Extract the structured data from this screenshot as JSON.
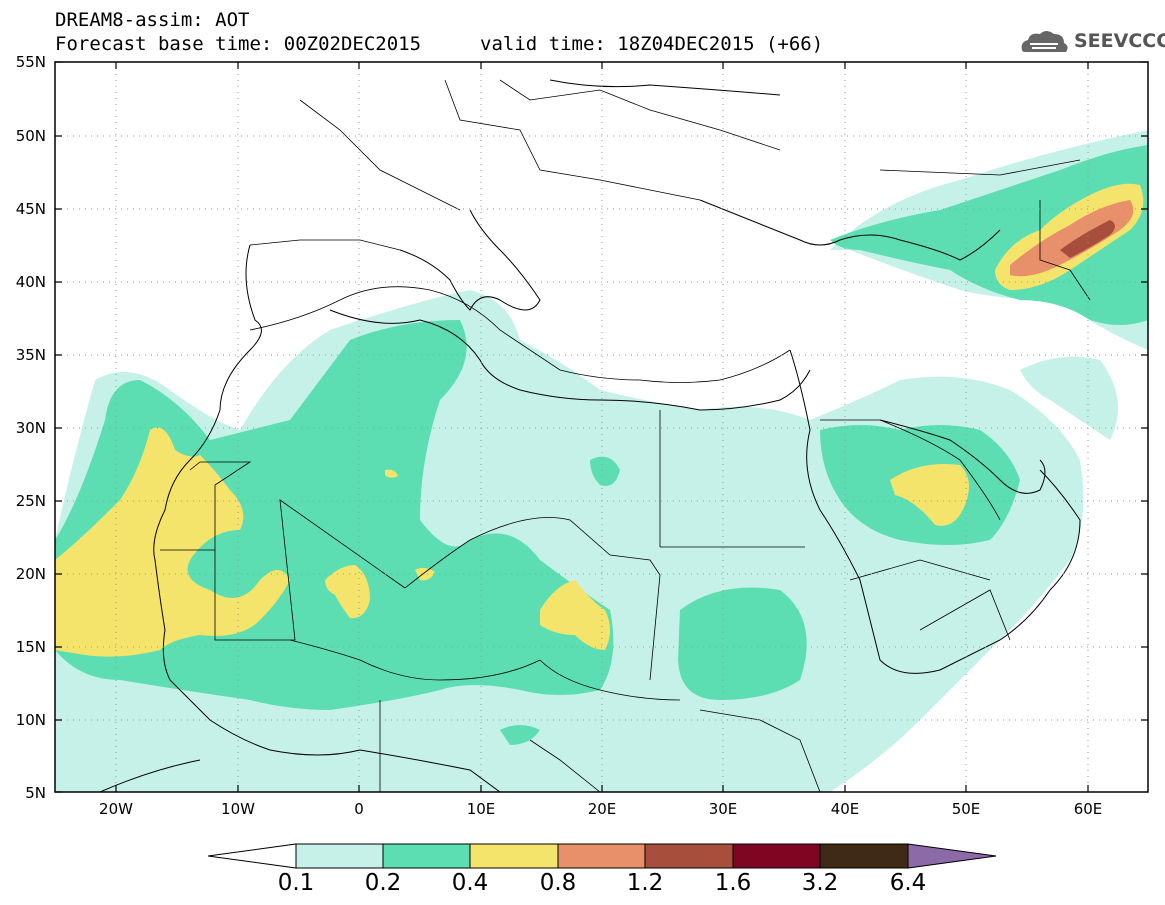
{
  "header": {
    "title_line1": "DREAM8-assim: AOT",
    "title_line2": "Forecast base time: 00Z02DEC2015",
    "valid_time": "valid time: 18Z04DEC2015 (+66)",
    "logo_text": "SEEVCCC"
  },
  "axes": {
    "lat_labels": [
      "55N",
      "50N",
      "45N",
      "40N",
      "35N",
      "30N",
      "25N",
      "20N",
      "15N",
      "10N",
      "5N"
    ],
    "lon_labels": [
      "20W",
      "10W",
      "0",
      "10E",
      "20E",
      "30E",
      "40E",
      "50E",
      "60E"
    ]
  },
  "colorbar": {
    "labels": [
      "0.1",
      "0.2",
      "0.4",
      "0.8",
      "1.2",
      "1.6",
      "3.2",
      "6.4"
    ],
    "colors": [
      "#ffffff",
      "#c6f1e8",
      "#5ddeb2",
      "#f4e46c",
      "#e8906a",
      "#a84e3c",
      "#7e0622",
      "#3e2a16",
      "#8c6aa8"
    ]
  },
  "map_colors": {
    "level_0_2": "#c6f1e8",
    "level_0_4": "#5ddeb2",
    "level_0_8": "#f4e46c",
    "level_1_2": "#e8906a",
    "level_1_6": "#a84e3c"
  }
}
